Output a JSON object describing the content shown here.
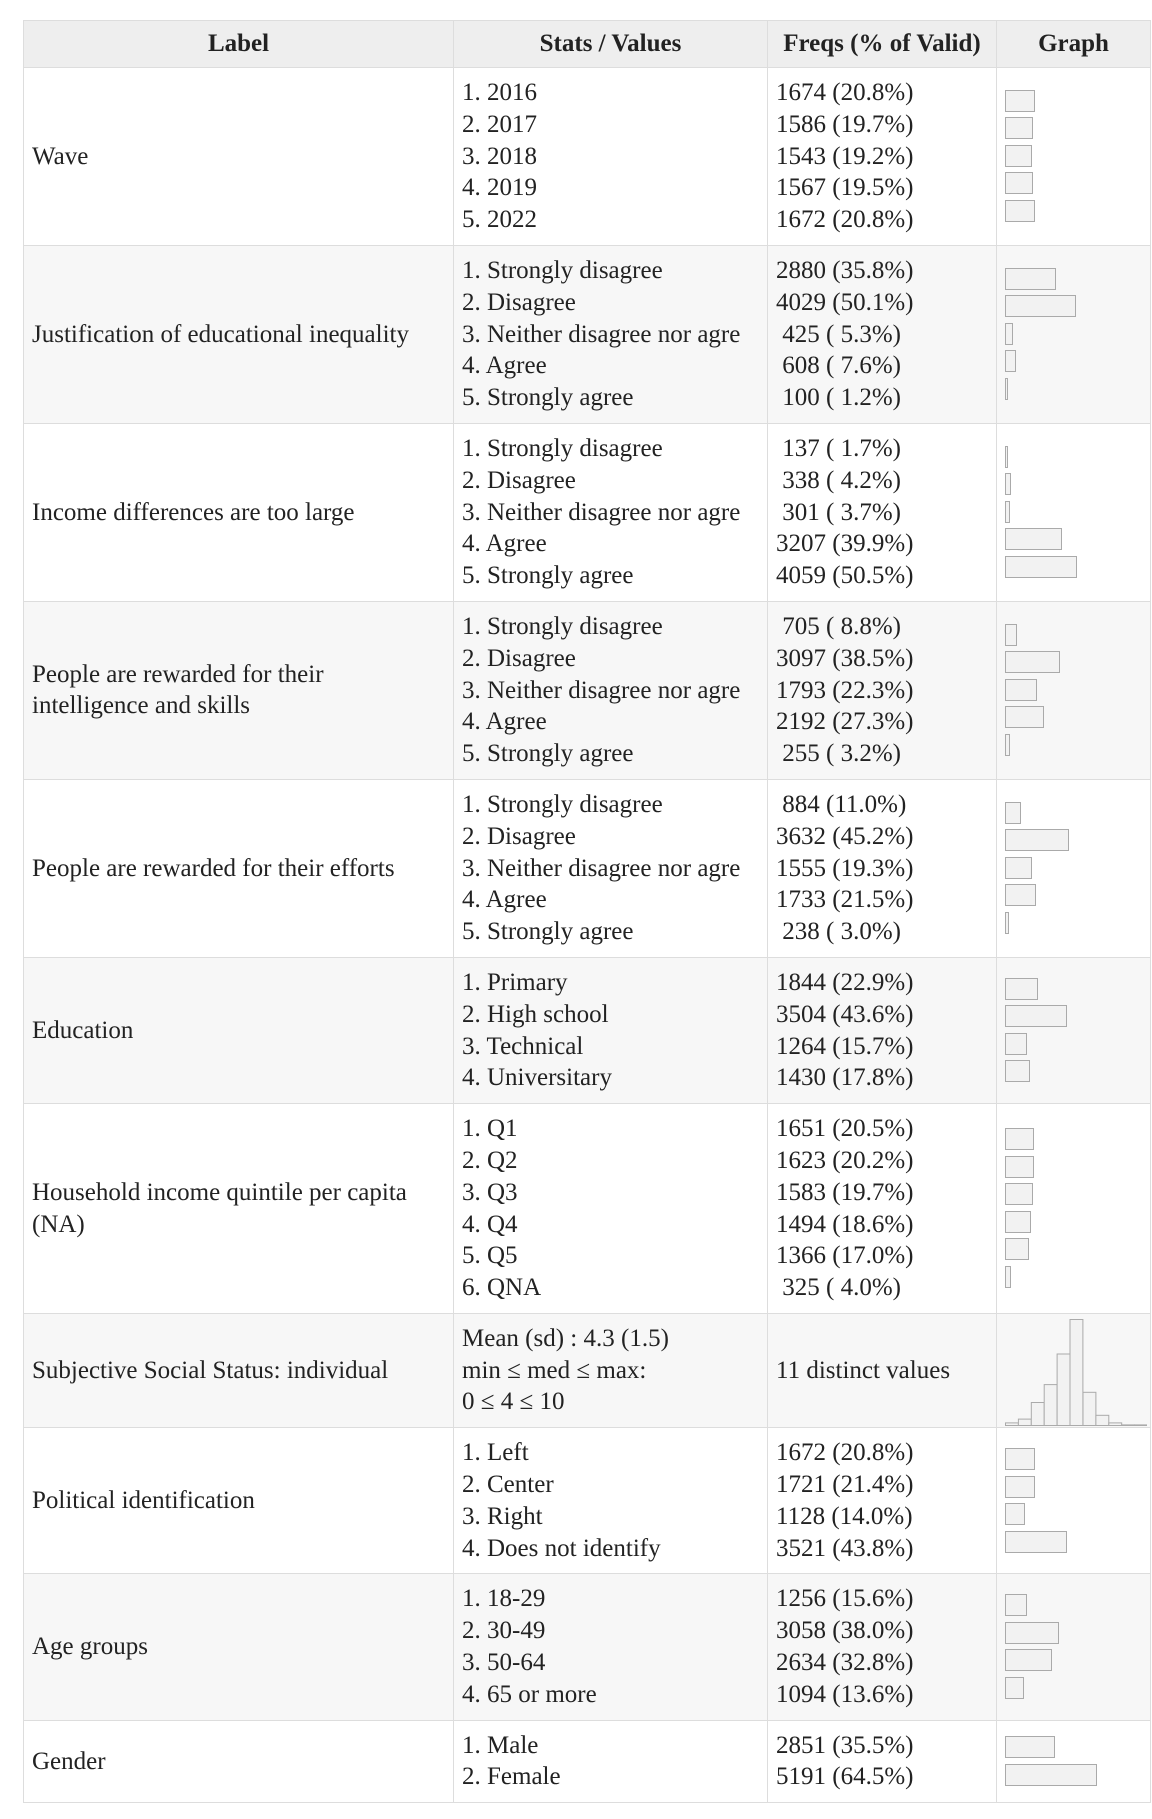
{
  "table": {
    "headers": [
      "Label",
      "Stats / Values",
      "Freqs (% of Valid)",
      "Graph"
    ],
    "rows": [
      {
        "label": "Wave",
        "stats": [
          "1. 2016",
          "2. 2017",
          "3. 2018",
          "4. 2019",
          "5. 2022"
        ],
        "freqs": [
          "1674 (20.8%)",
          "1586 (19.7%)",
          "1543 (19.2%)",
          "1567 (19.5%)",
          "1672 (20.8%)"
        ],
        "pcts": [
          20.8,
          19.7,
          19.2,
          19.5,
          20.8
        ]
      },
      {
        "label": "Justification of educational inequality",
        "stats": [
          "1. Strongly disagree",
          "2. Disagree",
          "3. Neither disagree nor agre",
          "4. Agree",
          "5. Strongly agree"
        ],
        "freqs": [
          "2880 (35.8%)",
          "4029 (50.1%)",
          " 425 ( 5.3%)",
          " 608 ( 7.6%)",
          " 100 ( 1.2%)"
        ],
        "pcts": [
          35.8,
          50.1,
          5.3,
          7.6,
          1.2
        ]
      },
      {
        "label": "Income differences are too large",
        "stats": [
          "1. Strongly disagree",
          "2. Disagree",
          "3. Neither disagree nor agre",
          "4. Agree",
          "5. Strongly agree"
        ],
        "freqs": [
          " 137 ( 1.7%)",
          " 338 ( 4.2%)",
          " 301 ( 3.7%)",
          "3207 (39.9%)",
          "4059 (50.5%)"
        ],
        "pcts": [
          1.7,
          4.2,
          3.7,
          39.9,
          50.5
        ]
      },
      {
        "label": "People are rewarded for their intelligence and skills",
        "stats": [
          "1. Strongly disagree",
          "2. Disagree",
          "3. Neither disagree nor agre",
          "4. Agree",
          "5. Strongly agree"
        ],
        "freqs": [
          " 705 ( 8.8%)",
          "3097 (38.5%)",
          "1793 (22.3%)",
          "2192 (27.3%)",
          " 255 ( 3.2%)"
        ],
        "pcts": [
          8.8,
          38.5,
          22.3,
          27.3,
          3.2
        ]
      },
      {
        "label": "People are rewarded for their efforts",
        "stats": [
          "1. Strongly disagree",
          "2. Disagree",
          "3. Neither disagree nor agre",
          "4. Agree",
          "5. Strongly agree"
        ],
        "freqs": [
          " 884 (11.0%)",
          "3632 (45.2%)",
          "1555 (19.3%)",
          "1733 (21.5%)",
          " 238 ( 3.0%)"
        ],
        "pcts": [
          11.0,
          45.2,
          19.3,
          21.5,
          3.0
        ]
      },
      {
        "label": "Education",
        "stats": [
          "1. Primary",
          "2. High school",
          "3. Technical",
          "4. Universitary"
        ],
        "freqs": [
          "1844 (22.9%)",
          "3504 (43.6%)",
          "1264 (15.7%)",
          "1430 (17.8%)"
        ],
        "pcts": [
          22.9,
          43.6,
          15.7,
          17.8
        ]
      },
      {
        "label": "Household income quintile per capita (NA)",
        "stats": [
          "1. Q1",
          "2. Q2",
          "3. Q3",
          "4. Q4",
          "5. Q5",
          "6. QNA"
        ],
        "freqs": [
          "1651 (20.5%)",
          "1623 (20.2%)",
          "1583 (19.7%)",
          "1494 (18.6%)",
          "1366 (17.0%)",
          " 325 ( 4.0%)"
        ],
        "pcts": [
          20.5,
          20.2,
          19.7,
          18.6,
          17.0,
          4.0
        ]
      },
      {
        "label": "Subjective Social Status: individual",
        "stats": [
          "Mean (sd) : 4.3 (1.5)",
          "min ≤ med ≤ max:",
          "0 ≤ 4 ≤ 10"
        ],
        "freqs": [
          "11 distinct values"
        ],
        "histogram": [
          2,
          5,
          18,
          32,
          56,
          83,
          26,
          8,
          2,
          0.5,
          0.5
        ]
      },
      {
        "label": "Political identification",
        "stats": [
          "1. Left",
          "2. Center",
          "3. Right",
          "4. Does not identify"
        ],
        "freqs": [
          "1672 (20.8%)",
          "1721 (21.4%)",
          "1128 (14.0%)",
          "3521 (43.8%)"
        ],
        "pcts": [
          20.8,
          21.4,
          14.0,
          43.8
        ]
      },
      {
        "label": "Age groups",
        "stats": [
          "1. 18-29",
          "2. 30-49",
          "3. 50-64",
          "4. 65 or more"
        ],
        "freqs": [
          "1256 (15.6%)",
          "3058 (38.0%)",
          "2634 (32.8%)",
          "1094 (13.6%)"
        ],
        "pcts": [
          15.6,
          38.0,
          32.8,
          13.6
        ]
      },
      {
        "label": "Gender",
        "stats": [
          "1. Male",
          "2. Female"
        ],
        "freqs": [
          "2851 (35.5%)",
          "5191 (64.5%)"
        ],
        "pcts": [
          35.5,
          64.5
        ]
      }
    ]
  }
}
